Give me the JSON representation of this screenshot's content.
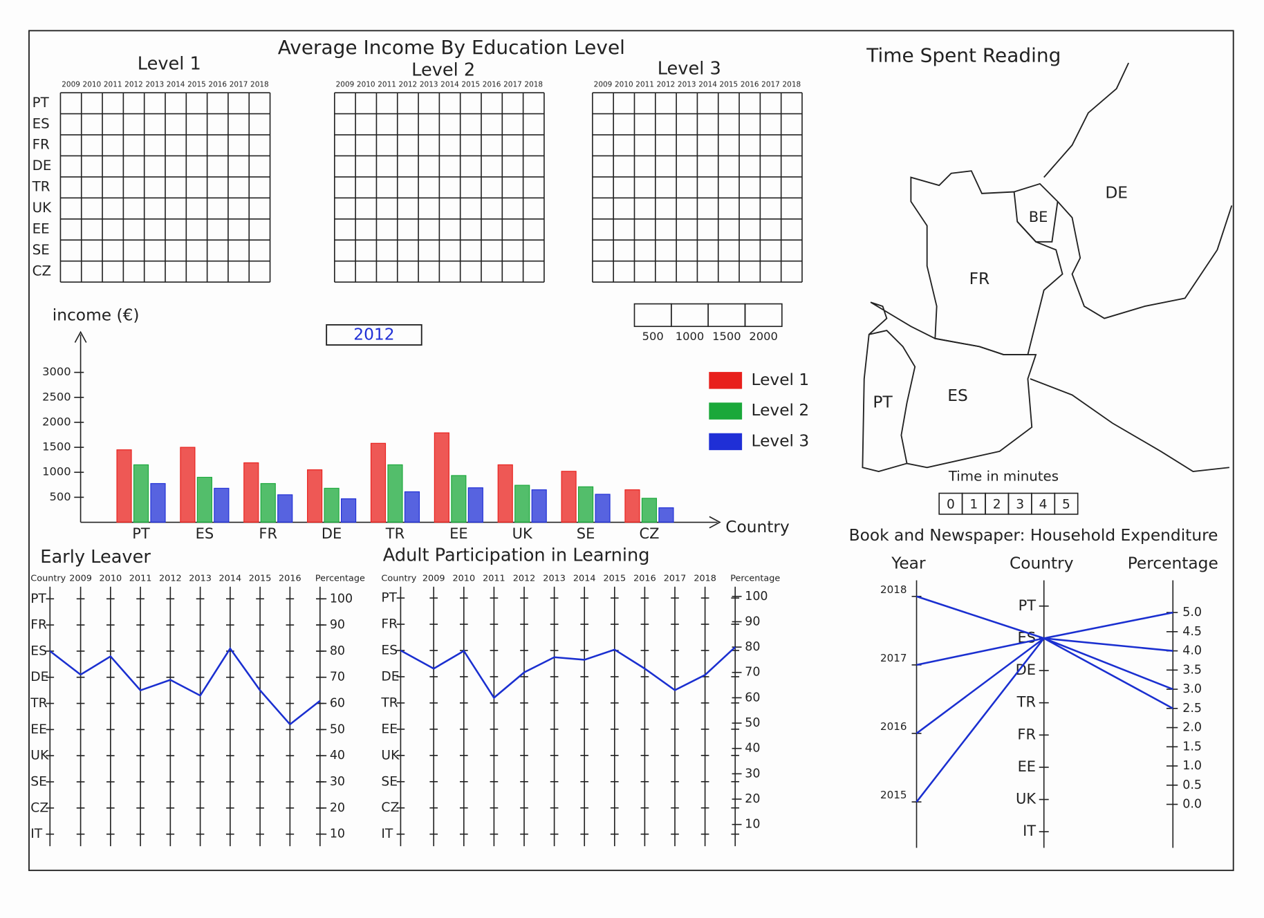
{
  "header": {
    "title": "Average Income By Education Level"
  },
  "heatmaps": {
    "years": [
      "2009",
      "2010",
      "2011",
      "2012",
      "2013",
      "2014",
      "2015",
      "2016",
      "2017",
      "2018"
    ],
    "countries": [
      "PT",
      "ES",
      "FR",
      "DE",
      "TR",
      "UK",
      "EE",
      "SE",
      "CZ"
    ],
    "panels": [
      {
        "title": "Level 1"
      },
      {
        "title": "Level 2"
      },
      {
        "title": "Level 3"
      }
    ]
  },
  "year_selector": "2012",
  "color_scale": {
    "ticks": [
      500,
      1000,
      1500,
      2000
    ]
  },
  "chart_data": [
    {
      "type": "bar",
      "ylabel": "income (€)",
      "xlabel": "Country",
      "categories": [
        "PT",
        "ES",
        "FR",
        "DE",
        "TR",
        "EE",
        "UK",
        "SE",
        "CZ"
      ],
      "series": [
        {
          "name": "Level 1",
          "color": "#e8201c",
          "values": [
            1450,
            1500,
            1190,
            1050,
            1580,
            1790,
            1150,
            1020,
            650
          ]
        },
        {
          "name": "Level 2",
          "color": "#1aa83a",
          "values": [
            1150,
            900,
            775,
            680,
            1150,
            935,
            740,
            710,
            480
          ]
        },
        {
          "name": "Level 3",
          "color": "#1f2fd6",
          "values": [
            775,
            680,
            550,
            470,
            610,
            690,
            650,
            560,
            290
          ]
        }
      ],
      "ylim": [
        0,
        3000
      ],
      "yticks": [
        500,
        1000,
        1500,
        2000,
        2500,
        3000
      ],
      "legend": "right"
    },
    {
      "type": "parallel",
      "title": "Early Leaver",
      "country_label": "Country",
      "percentage_label": "Percentage",
      "countries": [
        "PT",
        "FR",
        "ES",
        "DE",
        "TR",
        "EE",
        "UK",
        "SE",
        "CZ",
        "IT"
      ],
      "years": [
        "2009",
        "2010",
        "2011",
        "2012",
        "2013",
        "2014",
        "2015",
        "2016"
      ],
      "country": "ES",
      "values": [
        71,
        78,
        65,
        69,
        63,
        81,
        65,
        52
      ],
      "percentage": 61,
      "ylim": [
        10,
        100
      ],
      "yticks": [
        10,
        20,
        30,
        40,
        50,
        60,
        70,
        80,
        90,
        100
      ],
      "color": "#1a2fd0"
    },
    {
      "type": "parallel",
      "title": "Adult Participation in Learning",
      "country_label": "Country",
      "percentage_label": "Percentage",
      "countries": [
        "PT",
        "FR",
        "ES",
        "DE",
        "TR",
        "EE",
        "UK",
        "SE",
        "CZ",
        "IT"
      ],
      "years": [
        "2009",
        "2010",
        "2011",
        "2012",
        "2013",
        "2014",
        "2015",
        "2016",
        "2017",
        "2018"
      ],
      "country": "ES",
      "values": [
        71.5,
        78.5,
        60,
        70,
        76,
        75,
        79,
        71.5,
        63,
        69
      ],
      "percentage": 80,
      "ylim": [
        10,
        100
      ],
      "yticks": [
        10,
        20,
        30,
        40,
        50,
        60,
        70,
        80,
        90,
        100
      ],
      "color": "#1a2fd0"
    },
    {
      "type": "triaxis",
      "title": "Book and Newspaper: Household Expenditure",
      "axis_labels": [
        "Year",
        "Country",
        "Percentage"
      ],
      "years": [
        2018,
        2017,
        2016,
        2015
      ],
      "year_lim": [
        2015,
        2018
      ],
      "countries": [
        "PT",
        "ES",
        "DE",
        "TR",
        "FR",
        "EE",
        "UK",
        "IT"
      ],
      "ylim": [
        0,
        5
      ],
      "yticks": [
        {
          "value": 0,
          "label": "0.0"
        },
        0.5,
        {
          "value": 1,
          "label": "1.0"
        },
        1.5,
        {
          "value": 2,
          "label": "2.0"
        },
        2.5,
        {
          "value": 3,
          "label": "3.0"
        },
        3.5,
        {
          "value": 4,
          "label": "4.0"
        },
        4.5,
        {
          "value": 5,
          "label": "5.0"
        }
      ],
      "lines": [
        {
          "year": 2018,
          "country": "ES",
          "percentage": 5
        },
        {
          "year": 2017,
          "country": "ES",
          "percentage": 4
        },
        {
          "year": 2016,
          "country": "ES",
          "percentage": 3
        },
        {
          "year": 2015,
          "country": "ES",
          "percentage": 2.5
        }
      ],
      "color": "#1a2fd0"
    }
  ],
  "map": {
    "title": "Time Spent Reading",
    "regions": [
      "FR",
      "ES",
      "PT",
      "DE",
      "BE"
    ],
    "legend_title": "Time in minutes",
    "legend_ticks": [
      0,
      1,
      2,
      3,
      4,
      5
    ]
  }
}
